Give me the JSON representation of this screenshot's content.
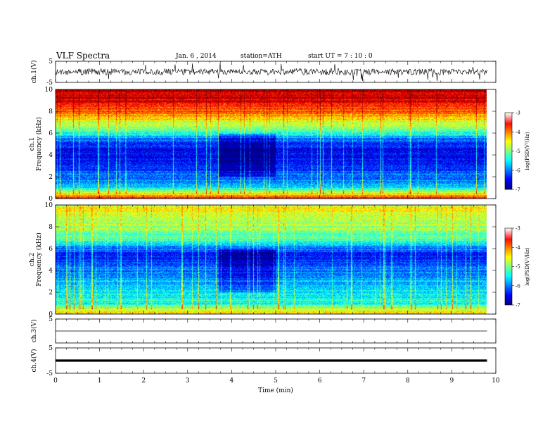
{
  "header": {
    "title": "VLF  Spectra",
    "date": "Jan. 6  , 2014",
    "station": "station=ATH",
    "start": "start  UT  =   7  : 10 : 0"
  },
  "chart_data": [
    {
      "type": "line",
      "panel": "ch1-waveform",
      "ylabel": "ch.1(V)",
      "ylim": [
        -5,
        5
      ],
      "yticks": [
        "5",
        "-5"
      ],
      "xlim": [
        0,
        10
      ],
      "data_extent_min": [
        0,
        9.8
      ],
      "amplitude_envelope_V": {
        "x": [
          0,
          1,
          2,
          3,
          3.8,
          4,
          5,
          6,
          7,
          8,
          9,
          9.8
        ],
        "y": [
          1.5,
          1.6,
          1.4,
          1.5,
          1.3,
          1.4,
          1.5,
          1.6,
          1.5,
          1.4,
          1.5,
          1.4
        ]
      }
    },
    {
      "type": "heatmap",
      "panel": "ch1-spectrogram",
      "ylabel": "ch.1\nFrequency  (kHz)",
      "ylim": [
        0,
        10
      ],
      "yticks": [
        "0",
        "2",
        "4",
        "6",
        "8",
        "10"
      ],
      "xlim": [
        0,
        10
      ],
      "data_extent_min": [
        0,
        9.8
      ],
      "colorbar": {
        "label": "log(PSD(V²/Hz)",
        "range": [
          -7,
          -3
        ],
        "ticks": [
          "-3",
          "-4",
          "-5",
          "-6",
          "-7"
        ]
      },
      "level_profile_logPSD": {
        "freq_kHz": [
          0,
          0.5,
          1,
          2,
          3,
          4,
          5,
          5.5,
          6,
          6.5,
          7,
          8,
          9,
          10
        ],
        "value": [
          -3.5,
          -4.6,
          -5.6,
          -6.1,
          -6.4,
          -6.5,
          -6.4,
          -6.0,
          -5.4,
          -5.0,
          -4.6,
          -3.9,
          -3.4,
          -3.2
        ]
      },
      "quiet_interval_min": [
        3.7,
        5.0
      ]
    },
    {
      "type": "heatmap",
      "panel": "ch2-spectrogram",
      "ylabel": "ch.2\nFrequency  (kHz)",
      "ylim": [
        0,
        10
      ],
      "yticks": [
        "0",
        "2",
        "4",
        "6",
        "8",
        "10"
      ],
      "xlim": [
        0,
        10
      ],
      "data_extent_min": [
        0,
        9.8
      ],
      "colorbar": {
        "label": "log(PSD(V²/Hz)",
        "range": [
          -7,
          -3
        ],
        "ticks": [
          "-3",
          "-4",
          "-5",
          "-6",
          "-7"
        ]
      },
      "level_profile_logPSD": {
        "freq_kHz": [
          0,
          0.5,
          1,
          2,
          3,
          4,
          5,
          5.5,
          6,
          7,
          8,
          9,
          10
        ],
        "value": [
          -4.0,
          -4.8,
          -5.4,
          -5.6,
          -5.8,
          -6.0,
          -6.3,
          -6.5,
          -6.0,
          -5.2,
          -4.9,
          -4.7,
          -4.5
        ]
      },
      "quiet_interval_min": [
        3.7,
        5.0
      ]
    },
    {
      "type": "line",
      "panel": "ch3-waveform",
      "ylabel": "ch.3(V)",
      "ylim": [
        -5,
        5
      ],
      "yticks": [
        "5"
      ],
      "xlim": [
        0,
        10
      ],
      "data_extent_min": [
        0,
        9.8
      ],
      "level_V": 0
    },
    {
      "type": "line",
      "panel": "ch4-waveform",
      "ylabel": "ch.4(V)",
      "ylim": [
        -5,
        5
      ],
      "yticks": [
        "5",
        "-5"
      ],
      "xlim": [
        0,
        10
      ],
      "data_extent_min": [
        0,
        9.8
      ],
      "level_V": 0,
      "xlabel": "Time  (min)",
      "xticks": [
        "0",
        "1",
        "2",
        "3",
        "4",
        "5",
        "6",
        "7",
        "8",
        "9",
        "10"
      ]
    }
  ]
}
